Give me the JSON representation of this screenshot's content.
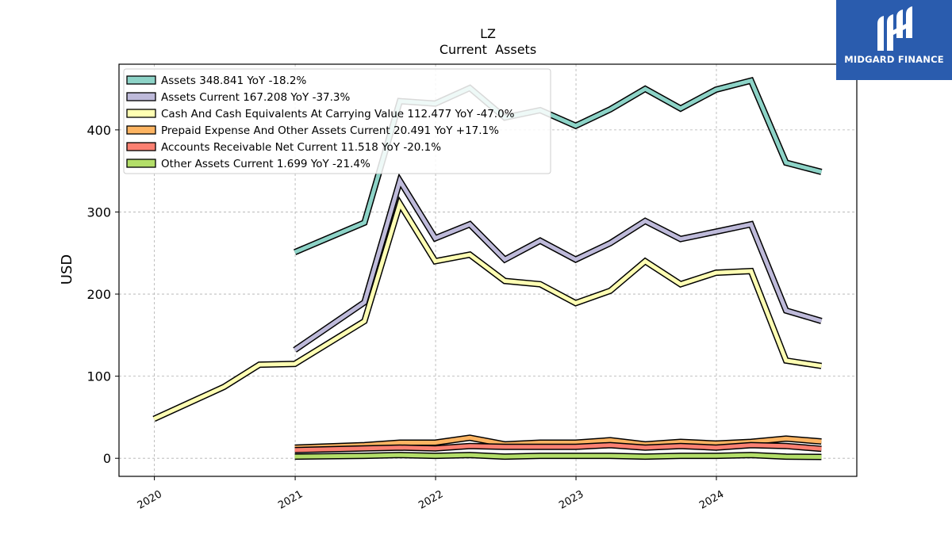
{
  "brand": {
    "name": "MIDGARD FINANCE",
    "bg_color": "#2a5cae",
    "icon": "midgard-logo-icon"
  },
  "chart_data": {
    "type": "line",
    "title": "LZ",
    "subtitle": "Current  Assets",
    "xlabel": "",
    "ylabel": "USD",
    "xlim": [
      "2019-10-01",
      "2024-12-31"
    ],
    "ylim": [
      -22,
      480
    ],
    "x_ticks": [
      "2020",
      "2021",
      "2022",
      "2023",
      "2024"
    ],
    "y_ticks": [
      0,
      100,
      200,
      300,
      400
    ],
    "grid": true,
    "legend_position": "top-left",
    "series": [
      {
        "name": "Assets  348.841 YoY -18.2%",
        "color": "#8dd3c7",
        "points": [
          [
            "2020-12-31",
            251
          ],
          [
            "2021-06-30",
            287
          ],
          [
            "2021-09-30",
            435
          ],
          [
            "2021-12-31",
            432
          ],
          [
            "2022-03-31",
            451
          ],
          [
            "2022-06-30",
            415
          ],
          [
            "2022-09-30",
            424
          ],
          [
            "2022-12-31",
            405
          ],
          [
            "2023-03-31",
            425
          ],
          [
            "2023-06-30",
            450
          ],
          [
            "2023-09-30",
            426
          ],
          [
            "2023-12-31",
            449
          ],
          [
            "2024-03-31",
            460
          ],
          [
            "2024-06-30",
            360
          ],
          [
            "2024-09-30",
            348.841
          ]
        ]
      },
      {
        "name": "Assets Current  167.208 YoY -37.3%",
        "color": "#bebada",
        "points": [
          [
            "2020-12-31",
            132
          ],
          [
            "2021-06-30",
            190
          ],
          [
            "2021-09-30",
            338
          ],
          [
            "2021-12-31",
            268
          ],
          [
            "2022-03-31",
            285
          ],
          [
            "2022-06-30",
            242
          ],
          [
            "2022-09-30",
            265
          ],
          [
            "2022-12-31",
            242
          ],
          [
            "2023-03-31",
            262
          ],
          [
            "2023-06-30",
            289
          ],
          [
            "2023-09-30",
            267
          ],
          [
            "2023-12-31",
            276
          ],
          [
            "2024-03-31",
            285
          ],
          [
            "2024-06-30",
            180
          ],
          [
            "2024-09-30",
            167.208
          ]
        ]
      },
      {
        "name": "Cash And Cash Equivalents At Carrying Value  112.477 YoY -47.0%",
        "color": "#ffffb3",
        "points": [
          [
            "2019-12-31",
            48
          ],
          [
            "2020-06-30",
            87
          ],
          [
            "2020-09-30",
            114
          ],
          [
            "2020-12-31",
            115
          ],
          [
            "2021-06-30",
            167
          ],
          [
            "2021-09-30",
            310
          ],
          [
            "2021-12-31",
            240
          ],
          [
            "2022-03-31",
            248
          ],
          [
            "2022-06-30",
            216
          ],
          [
            "2022-09-30",
            212
          ],
          [
            "2022-12-31",
            189
          ],
          [
            "2023-03-31",
            204
          ],
          [
            "2023-06-30",
            240
          ],
          [
            "2023-09-30",
            212
          ],
          [
            "2023-12-31",
            226
          ],
          [
            "2024-03-31",
            228
          ],
          [
            "2024-06-30",
            119
          ],
          [
            "2024-09-30",
            112.477
          ]
        ]
      },
      {
        "name": "Prepaid Expense And Other Assets Current  20.491 YoY +17.1%",
        "color": "#fdb462",
        "points": [
          [
            "2020-12-31",
            13
          ],
          [
            "2021-06-30",
            16
          ],
          [
            "2021-09-30",
            19
          ],
          [
            "2021-12-31",
            19
          ],
          [
            "2022-03-31",
            25
          ],
          [
            "2022-06-30",
            17
          ],
          [
            "2022-09-30",
            19
          ],
          [
            "2022-12-31",
            19
          ],
          [
            "2023-03-31",
            22
          ],
          [
            "2023-06-30",
            17
          ],
          [
            "2023-09-30",
            20
          ],
          [
            "2023-12-31",
            18
          ],
          [
            "2024-03-31",
            20
          ],
          [
            "2024-06-30",
            24
          ],
          [
            "2024-09-30",
            20.491
          ]
        ]
      },
      {
        "name": "Accounts Receivable Net Current  11.518 YoY -20.1%",
        "color": "#fb8072",
        "points": [
          [
            "2020-12-31",
            10
          ],
          [
            "2021-06-30",
            12
          ],
          [
            "2021-09-30",
            13
          ],
          [
            "2021-12-31",
            12
          ],
          [
            "2022-03-31",
            15
          ],
          [
            "2022-06-30",
            14
          ],
          [
            "2022-09-30",
            14
          ],
          [
            "2022-12-31",
            14
          ],
          [
            "2023-03-31",
            16
          ],
          [
            "2023-06-30",
            13
          ],
          [
            "2023-09-30",
            15
          ],
          [
            "2023-12-31",
            13
          ],
          [
            "2024-03-31",
            16
          ],
          [
            "2024-06-30",
            15
          ],
          [
            "2024-09-30",
            11.518
          ]
        ]
      },
      {
        "name": "Other Assets Current  1.699 YoY -21.4%",
        "color": "#b3de69",
        "points": [
          [
            "2020-12-31",
            2
          ],
          [
            "2021-06-30",
            3
          ],
          [
            "2021-09-30",
            4
          ],
          [
            "2021-12-31",
            3
          ],
          [
            "2022-03-31",
            4
          ],
          [
            "2022-06-30",
            2
          ],
          [
            "2022-09-30",
            3
          ],
          [
            "2022-12-31",
            3
          ],
          [
            "2023-03-31",
            3
          ],
          [
            "2023-06-30",
            2
          ],
          [
            "2023-09-30",
            3
          ],
          [
            "2023-12-31",
            3
          ],
          [
            "2024-03-31",
            4
          ],
          [
            "2024-06-30",
            2
          ],
          [
            "2024-09-30",
            1.699
          ]
        ]
      }
    ]
  }
}
